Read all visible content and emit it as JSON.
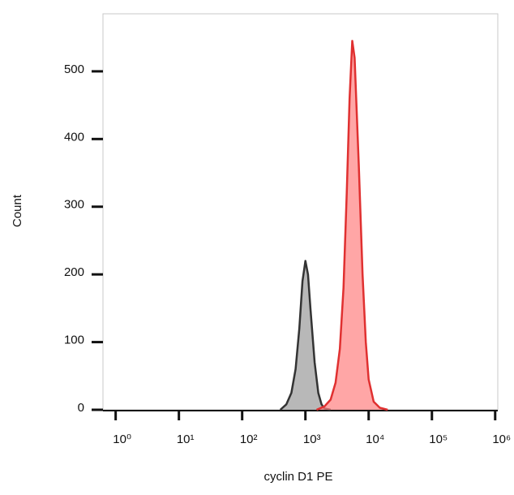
{
  "chart_data": {
    "type": "histogram",
    "x_label": "cyclin D1 PE",
    "y_label": "Count",
    "log_x": true,
    "xlim": [
      0.63,
      1100000
    ],
    "ylim": [
      0,
      585
    ],
    "xticks": [
      {
        "value": 1,
        "label": "10⁰"
      },
      {
        "value": 10,
        "label": "10¹"
      },
      {
        "value": 100,
        "label": "10²"
      },
      {
        "value": 1000,
        "label": "10³"
      },
      {
        "value": 10000,
        "label": "10⁴"
      },
      {
        "value": 100000,
        "label": "10⁵"
      },
      {
        "value": 1000000,
        "label": "10⁶"
      }
    ],
    "yticks": [
      0,
      100,
      200,
      300,
      400,
      500
    ],
    "series": [
      {
        "color": "#9a9a9a",
        "edge_color": "#333333",
        "x": [
          400,
          500,
          600,
          700,
          800,
          900,
          1000,
          1100,
          1200,
          1400,
          1600,
          1800,
          2000,
          2500
        ],
        "values": [
          0,
          8,
          25,
          60,
          120,
          190,
          220,
          200,
          150,
          70,
          25,
          8,
          2,
          0
        ]
      },
      {
        "color": "#ff8080",
        "edge_color": "#e03030",
        "x": [
          1500,
          2000,
          2500,
          3000,
          3500,
          4000,
          4500,
          5000,
          5500,
          6000,
          7000,
          8000,
          9000,
          10000,
          12000,
          15000,
          20000
        ],
        "values": [
          0,
          5,
          15,
          40,
          90,
          180,
          320,
          460,
          545,
          520,
          360,
          200,
          100,
          45,
          12,
          3,
          0
        ]
      }
    ]
  }
}
